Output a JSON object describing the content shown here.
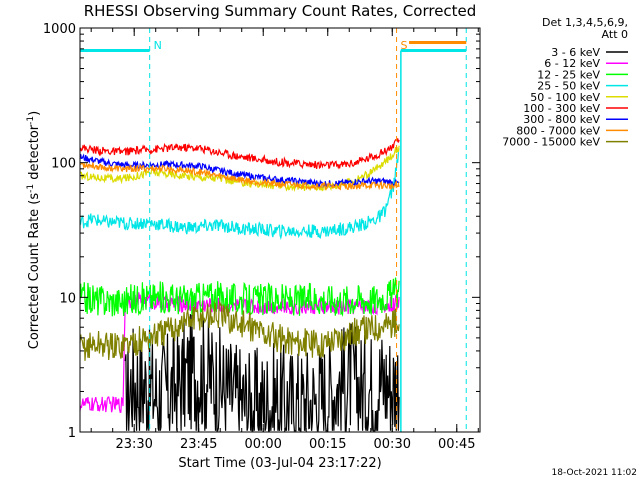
{
  "chart_data": {
    "type": "line",
    "title": "RHESSI Observing Summary Count Rates, Corrected",
    "xlabel": "Start Time (03-Jul-04 23:17:22)",
    "ylabel_parts": [
      "Corrected Count Rate (s",
      "-1",
      " detector",
      "-1",
      ")"
    ],
    "y_scale": "log",
    "ylim": [
      1,
      1000
    ],
    "y_ticks": [
      {
        "value": 1,
        "label": "1"
      },
      {
        "value": 10,
        "label": "10"
      },
      {
        "value": 100,
        "label": "100"
      },
      {
        "value": 1000,
        "label": "1000"
      }
    ],
    "x_start_minutes": 0,
    "x_end_minutes": 93,
    "x_ticks": [
      {
        "minutes": 12.6,
        "label": "23:30"
      },
      {
        "minutes": 27.6,
        "label": "23:45"
      },
      {
        "minutes": 42.6,
        "label": "00:00"
      },
      {
        "minutes": 57.6,
        "label": "00:15"
      },
      {
        "minutes": 72.6,
        "label": "00:30"
      },
      {
        "minutes": 87.6,
        "label": "00:45"
      }
    ],
    "legend_header": [
      "Det 1,3,4,5,6,9,",
      "Att 0"
    ],
    "legend_position": "right",
    "markers": [
      {
        "label": "N",
        "minutes": 16.2,
        "color": "#00e5e5"
      },
      {
        "label": "S",
        "minutes": 73.6,
        "color": "#ff8c00"
      }
    ],
    "flag_bars": [
      {
        "color": "#00e5e5",
        "x_minutes": [
          0,
          16.2
        ],
        "y_value": 680
      },
      {
        "color": "#ff8c00",
        "x_minutes": [
          76.5,
          89.8
        ],
        "y_value": 780
      },
      {
        "color": "#00e5e5",
        "x_minutes": [
          74.6,
          89.8
        ],
        "y_value": 680
      }
    ],
    "series": [
      {
        "name": "3 - 6 keV",
        "color": "#000000",
        "points": [
          [
            10.5,
            1.5
          ],
          [
            12,
            2.4
          ],
          [
            15,
            2.2
          ],
          [
            18,
            1.9
          ],
          [
            22,
            2.1
          ],
          [
            26,
            2.8
          ],
          [
            30,
            2.6
          ],
          [
            35,
            1.9
          ],
          [
            40,
            1.5
          ],
          [
            45,
            1.7
          ],
          [
            50,
            1.6
          ],
          [
            55,
            1.7
          ],
          [
            60,
            2.2
          ],
          [
            63,
            2.5
          ],
          [
            66,
            2.0
          ],
          [
            70,
            2.4
          ],
          [
            73,
            2.2
          ],
          [
            74.2,
            2.5
          ]
        ]
      },
      {
        "name": "6 - 12 keV",
        "color": "#ff00ff",
        "points": [
          [
            0,
            1.6
          ],
          [
            5,
            1.6
          ],
          [
            10,
            1.6
          ],
          [
            10.5,
            9.5
          ],
          [
            15,
            9.5
          ],
          [
            20,
            9.0
          ],
          [
            30,
            8.8
          ],
          [
            40,
            8.6
          ],
          [
            50,
            8.5
          ],
          [
            60,
            8.4
          ],
          [
            65,
            8.6
          ],
          [
            70,
            8.6
          ],
          [
            74.2,
            9.0
          ]
        ]
      },
      {
        "name": "12 - 25 keV",
        "color": "#00ff00",
        "points": [
          [
            0,
            10
          ],
          [
            5,
            9.5
          ],
          [
            10,
            9.3
          ],
          [
            15,
            10
          ],
          [
            20,
            10
          ],
          [
            25,
            9.6
          ],
          [
            30,
            10.3
          ],
          [
            35,
            9.8
          ],
          [
            40,
            9.5
          ],
          [
            45,
            9.7
          ],
          [
            50,
            9.5
          ],
          [
            55,
            9.8
          ],
          [
            60,
            9.6
          ],
          [
            65,
            9.8
          ],
          [
            68,
            9.6
          ],
          [
            70,
            10
          ],
          [
            72,
            10.5
          ],
          [
            74.2,
            11
          ]
        ]
      },
      {
        "name": "25 - 50 keV",
        "color": "#00e5e5",
        "points": [
          [
            0,
            36
          ],
          [
            3,
            38
          ],
          [
            6,
            36
          ],
          [
            9,
            36
          ],
          [
            12,
            35
          ],
          [
            15,
            36
          ],
          [
            18,
            35
          ],
          [
            21,
            34
          ],
          [
            24,
            33
          ],
          [
            27,
            33
          ],
          [
            30,
            34
          ],
          [
            33,
            34
          ],
          [
            36,
            33
          ],
          [
            39,
            32
          ],
          [
            42,
            32
          ],
          [
            45,
            31
          ],
          [
            48,
            31
          ],
          [
            51,
            31
          ],
          [
            54,
            31
          ],
          [
            57,
            31
          ],
          [
            60,
            32
          ],
          [
            63,
            33
          ],
          [
            66,
            35
          ],
          [
            68,
            37
          ],
          [
            70,
            40
          ],
          [
            71,
            45
          ],
          [
            72,
            55
          ],
          [
            73,
            70
          ],
          [
            74.2,
            120
          ]
        ]
      },
      {
        "name": "50 - 100 keV",
        "color": "#dcdc00",
        "points": [
          [
            0,
            80
          ],
          [
            4,
            78
          ],
          [
            8,
            75
          ],
          [
            12,
            78
          ],
          [
            16,
            85
          ],
          [
            20,
            83
          ],
          [
            24,
            80
          ],
          [
            28,
            78
          ],
          [
            32,
            77
          ],
          [
            36,
            72
          ],
          [
            40,
            70
          ],
          [
            44,
            68
          ],
          [
            48,
            67
          ],
          [
            52,
            66
          ],
          [
            56,
            66
          ],
          [
            60,
            68
          ],
          [
            64,
            75
          ],
          [
            67,
            82
          ],
          [
            70,
            95
          ],
          [
            72,
            110
          ],
          [
            74.2,
            130
          ]
        ]
      },
      {
        "name": "100 - 300 keV",
        "color": "#ff0000",
        "points": [
          [
            0,
            130
          ],
          [
            3,
            125
          ],
          [
            6,
            122
          ],
          [
            9,
            120
          ],
          [
            12,
            122
          ],
          [
            16,
            125
          ],
          [
            20,
            128
          ],
          [
            24,
            130
          ],
          [
            28,
            128
          ],
          [
            32,
            120
          ],
          [
            36,
            113
          ],
          [
            40,
            108
          ],
          [
            44,
            103
          ],
          [
            48,
            100
          ],
          [
            52,
            98
          ],
          [
            56,
            96
          ],
          [
            60,
            96
          ],
          [
            64,
            100
          ],
          [
            67,
            108
          ],
          [
            70,
            118
          ],
          [
            72,
            128
          ],
          [
            74.2,
            145
          ]
        ]
      },
      {
        "name": "300 - 800 keV",
        "color": "#0000ff",
        "points": [
          [
            0,
            110
          ],
          [
            3,
            105
          ],
          [
            6,
            100
          ],
          [
            9,
            97
          ],
          [
            12,
            95
          ],
          [
            16,
            96
          ],
          [
            20,
            97
          ],
          [
            24,
            96
          ],
          [
            28,
            94
          ],
          [
            32,
            88
          ],
          [
            36,
            83
          ],
          [
            40,
            79
          ],
          [
            44,
            76
          ],
          [
            48,
            74
          ],
          [
            52,
            72
          ],
          [
            56,
            70
          ],
          [
            60,
            70
          ],
          [
            64,
            72
          ],
          [
            67,
            73
          ],
          [
            70,
            73
          ],
          [
            72,
            72
          ],
          [
            74.2,
            70
          ]
        ]
      },
      {
        "name": "800 - 7000 keV",
        "color": "#ff8c00",
        "points": [
          [
            0,
            98
          ],
          [
            3,
            95
          ],
          [
            6,
            92
          ],
          [
            9,
            90
          ],
          [
            12,
            90
          ],
          [
            16,
            91
          ],
          [
            20,
            90
          ],
          [
            24,
            88
          ],
          [
            28,
            85
          ],
          [
            32,
            80
          ],
          [
            36,
            76
          ],
          [
            40,
            73
          ],
          [
            44,
            70
          ],
          [
            48,
            69
          ],
          [
            52,
            68
          ],
          [
            56,
            67
          ],
          [
            60,
            67
          ],
          [
            64,
            67
          ],
          [
            67,
            68
          ],
          [
            70,
            68
          ],
          [
            72,
            67
          ],
          [
            74.2,
            66
          ]
        ]
      },
      {
        "name": "7000 - 15000 keV",
        "color": "#808000",
        "points": [
          [
            0,
            4.2
          ],
          [
            4,
            4.5
          ],
          [
            8,
            4.3
          ],
          [
            12,
            4.6
          ],
          [
            16,
            5
          ],
          [
            20,
            5.5
          ],
          [
            24,
            6.5
          ],
          [
            28,
            7.2
          ],
          [
            32,
            7.4
          ],
          [
            36,
            6.5
          ],
          [
            40,
            6
          ],
          [
            44,
            5.2
          ],
          [
            48,
            4.8
          ],
          [
            52,
            4.6
          ],
          [
            56,
            4.5
          ],
          [
            60,
            5
          ],
          [
            64,
            5.5
          ],
          [
            68,
            6
          ],
          [
            70,
            6.2
          ],
          [
            74.2,
            6.5
          ]
        ]
      }
    ]
  },
  "footer": {
    "timestamp": "18-Oct-2021 11:02"
  }
}
